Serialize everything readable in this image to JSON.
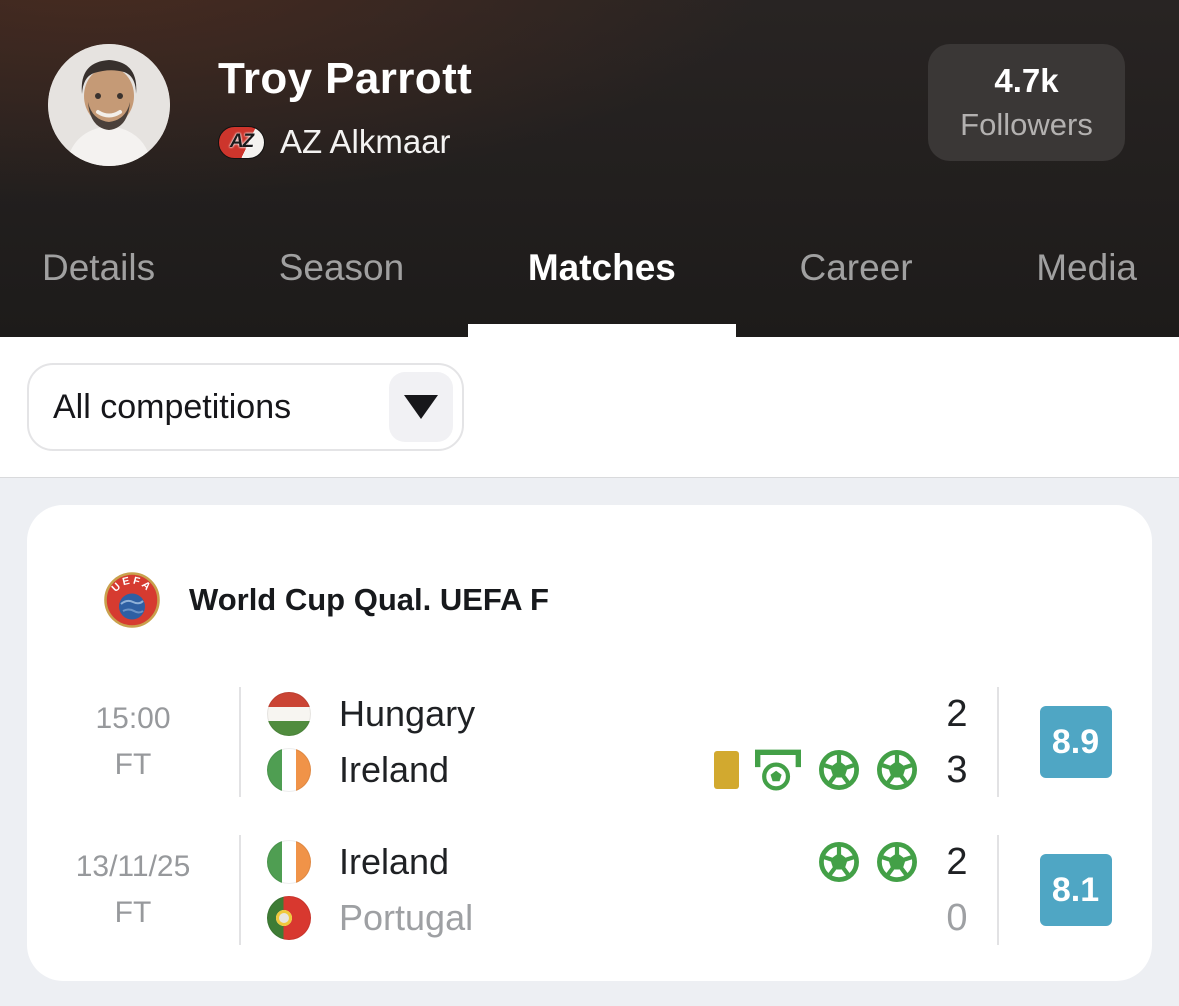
{
  "header": {
    "player_name": "Troy Parrott",
    "team": {
      "name": "AZ Alkmaar",
      "badge": "AZ"
    },
    "followers": {
      "count": "4.7k",
      "label": "Followers"
    }
  },
  "tabs": [
    {
      "label": "Details",
      "active": false
    },
    {
      "label": "Season",
      "active": false
    },
    {
      "label": "Matches",
      "active": true
    },
    {
      "label": "Career",
      "active": false
    },
    {
      "label": "Media",
      "active": false
    }
  ],
  "filter": {
    "value": "All competitions",
    "icon": "caret-down-icon"
  },
  "card": {
    "competition": {
      "name": "World Cup Qual. UEFA F",
      "logo": "uefa-logo",
      "logo_text": "UEFA"
    },
    "matches": [
      {
        "time": "15:00",
        "status": "FT",
        "rating": "8.9",
        "teams": [
          {
            "name": "Hungary",
            "flag": "hungary",
            "score": "2",
            "muted": false,
            "events": []
          },
          {
            "name": "Ireland",
            "flag": "ireland",
            "score": "3",
            "muted": false,
            "events": [
              "yellow-card",
              "assist",
              "goal",
              "goal"
            ]
          }
        ]
      },
      {
        "time": "13/11/25",
        "status": "FT",
        "rating": "8.1",
        "teams": [
          {
            "name": "Ireland",
            "flag": "ireland",
            "score": "2",
            "muted": false,
            "events": [
              "goal",
              "goal"
            ]
          },
          {
            "name": "Portugal",
            "flag": "portugal",
            "score": "0",
            "muted": true,
            "events": []
          }
        ]
      }
    ]
  },
  "colors": {
    "rating_badge": "#4fa6c4",
    "goal_icon": "#43a047",
    "yellow_card": "#d2a92f",
    "active_tab": "#ffffff",
    "inactive_tab": "#a0a0a0",
    "uefa_red": "#d63b30",
    "uefa_gold": "#c9a14d",
    "uefa_globe": "#2e5fa3"
  }
}
